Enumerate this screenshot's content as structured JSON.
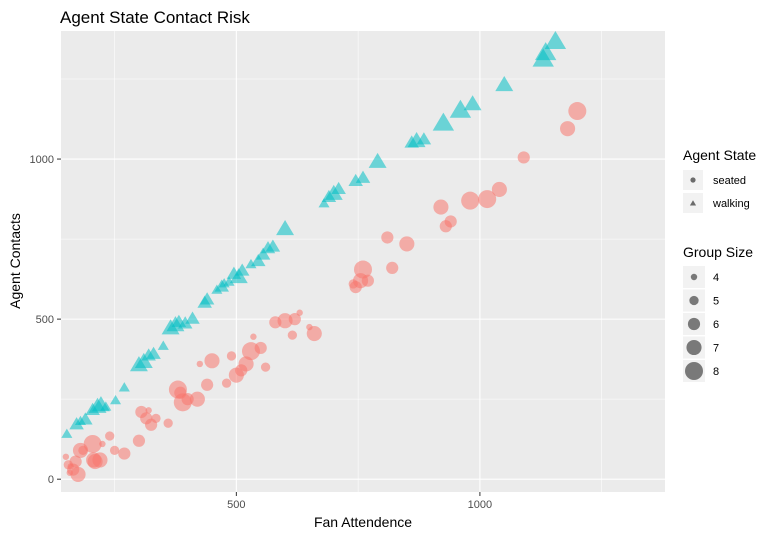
{
  "chart_data": {
    "type": "scatter",
    "title": "Agent State Contact Risk",
    "xlabel": "Fan Attendence",
    "ylabel": "Agent Contacts",
    "xlim": [
      140,
      1380
    ],
    "ylim": [
      -40,
      1400
    ],
    "x_ticks": [
      500,
      1000
    ],
    "y_ticks": [
      0,
      500,
      1000
    ],
    "grid": true,
    "legend_position": "right",
    "colors": {
      "seated": "#F8766D",
      "walking": "#00BFC4",
      "panel": "#EBEBEB",
      "legend_key": "#6b6b6b"
    },
    "legend": {
      "shape_title": "Agent State",
      "shape_entries": [
        {
          "label": "seated",
          "shape": "circle"
        },
        {
          "label": "walking",
          "shape": "triangle"
        }
      ],
      "size_title": "Group Size",
      "size_entries": [
        {
          "label": "4",
          "value": 4
        },
        {
          "label": "5",
          "value": 5
        },
        {
          "label": "6",
          "value": 6
        },
        {
          "label": "7",
          "value": 7
        },
        {
          "label": "8",
          "value": 8
        }
      ]
    },
    "series": [
      {
        "name": "seated",
        "shape": "circle",
        "points": [
          [
            150,
            70,
            4
          ],
          [
            155,
            45,
            5
          ],
          [
            158,
            20,
            4
          ],
          [
            160,
            40,
            4
          ],
          [
            165,
            30,
            6
          ],
          [
            170,
            55,
            6
          ],
          [
            175,
            15,
            7
          ],
          [
            180,
            90,
            7
          ],
          [
            185,
            90,
            5
          ],
          [
            205,
            110,
            8
          ],
          [
            207,
            60,
            7
          ],
          [
            210,
            55,
            7
          ],
          [
            220,
            60,
            7
          ],
          [
            225,
            110,
            4
          ],
          [
            240,
            135,
            5
          ],
          [
            250,
            90,
            5
          ],
          [
            270,
            80,
            6
          ],
          [
            300,
            120,
            6
          ],
          [
            305,
            210,
            6
          ],
          [
            315,
            190,
            6
          ],
          [
            320,
            215,
            4
          ],
          [
            325,
            170,
            6
          ],
          [
            335,
            190,
            5
          ],
          [
            360,
            175,
            5
          ],
          [
            380,
            280,
            8
          ],
          [
            385,
            270,
            6
          ],
          [
            390,
            240,
            8
          ],
          [
            400,
            250,
            6
          ],
          [
            420,
            250,
            7
          ],
          [
            425,
            360,
            4
          ],
          [
            440,
            295,
            6
          ],
          [
            450,
            370,
            7
          ],
          [
            480,
            300,
            5
          ],
          [
            490,
            385,
            5
          ],
          [
            500,
            325,
            7
          ],
          [
            510,
            340,
            6
          ],
          [
            520,
            360,
            7
          ],
          [
            530,
            400,
            8
          ],
          [
            535,
            445,
            4
          ],
          [
            550,
            410,
            6
          ],
          [
            560,
            350,
            5
          ],
          [
            580,
            490,
            6
          ],
          [
            600,
            495,
            7
          ],
          [
            615,
            450,
            5
          ],
          [
            620,
            500,
            6
          ],
          [
            630,
            520,
            4
          ],
          [
            650,
            475,
            4
          ],
          [
            660,
            455,
            7
          ],
          [
            740,
            610,
            5
          ],
          [
            745,
            600,
            6
          ],
          [
            755,
            620,
            7
          ],
          [
            760,
            655,
            8
          ],
          [
            770,
            620,
            6
          ],
          [
            810,
            755,
            6
          ],
          [
            820,
            660,
            6
          ],
          [
            850,
            735,
            7
          ],
          [
            920,
            850,
            7
          ],
          [
            930,
            790,
            6
          ],
          [
            940,
            805,
            6
          ],
          [
            980,
            870,
            8
          ],
          [
            1015,
            875,
            8
          ],
          [
            1040,
            905,
            7
          ],
          [
            1090,
            1005,
            6
          ],
          [
            1180,
            1095,
            7
          ],
          [
            1200,
            1150,
            8
          ]
        ]
      },
      {
        "name": "walking",
        "shape": "triangle",
        "points": [
          [
            152,
            140,
            5
          ],
          [
            172,
            170,
            6
          ],
          [
            180,
            180,
            5
          ],
          [
            190,
            185,
            6
          ],
          [
            205,
            215,
            6
          ],
          [
            215,
            225,
            7
          ],
          [
            222,
            230,
            7
          ],
          [
            232,
            225,
            5
          ],
          [
            252,
            245,
            5
          ],
          [
            270,
            285,
            5
          ],
          [
            300,
            355,
            7
          ],
          [
            310,
            365,
            7
          ],
          [
            320,
            385,
            6
          ],
          [
            330,
            390,
            6
          ],
          [
            350,
            415,
            5
          ],
          [
            365,
            470,
            7
          ],
          [
            375,
            480,
            7
          ],
          [
            382,
            490,
            6
          ],
          [
            395,
            485,
            6
          ],
          [
            410,
            500,
            6
          ],
          [
            435,
            550,
            6
          ],
          [
            440,
            560,
            6
          ],
          [
            460,
            590,
            5
          ],
          [
            470,
            600,
            6
          ],
          [
            475,
            610,
            5
          ],
          [
            485,
            615,
            5
          ],
          [
            495,
            640,
            6
          ],
          [
            505,
            630,
            7
          ],
          [
            512,
            650,
            6
          ],
          [
            530,
            670,
            5
          ],
          [
            545,
            680,
            6
          ],
          [
            555,
            700,
            6
          ],
          [
            565,
            720,
            6
          ],
          [
            575,
            725,
            6
          ],
          [
            600,
            780,
            7
          ],
          [
            680,
            860,
            5
          ],
          [
            690,
            880,
            6
          ],
          [
            700,
            890,
            7
          ],
          [
            710,
            905,
            6
          ],
          [
            745,
            930,
            6
          ],
          [
            760,
            940,
            6
          ],
          [
            790,
            990,
            7
          ],
          [
            860,
            1050,
            6
          ],
          [
            870,
            1055,
            7
          ],
          [
            885,
            1060,
            6
          ],
          [
            925,
            1110,
            8
          ],
          [
            960,
            1150,
            8
          ],
          [
            985,
            1170,
            7
          ],
          [
            1050,
            1230,
            7
          ],
          [
            1130,
            1310,
            8
          ],
          [
            1135,
            1330,
            8
          ],
          [
            1155,
            1365,
            8
          ]
        ]
      }
    ]
  }
}
